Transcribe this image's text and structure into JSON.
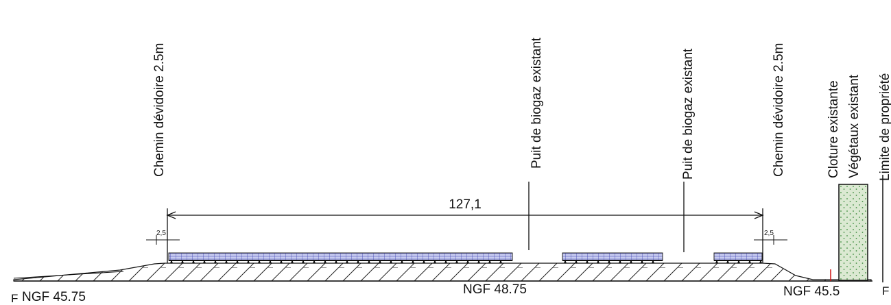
{
  "labels": {
    "chemin_left": "Chemin dévidoire 2.5m",
    "puit_1": "Puit de biogaz existant",
    "puit_2": "Puit de biogaz existant",
    "chemin_right": "Chemin dévidoire 2.5m",
    "cloture": "Cloture existante",
    "vegetaux": "Végétaux existant",
    "limite": "Limite de propriété"
  },
  "dimensions": {
    "span": "127,1",
    "offset_left": "2,5",
    "offset_right": "2,5"
  },
  "levels": {
    "left": "NGF 45.75",
    "center": "NGF 48.75",
    "right": "NGF 45.5"
  },
  "edge_marks": {
    "left": "F",
    "right": "F"
  },
  "colors": {
    "line": "#111111",
    "panel_fill": "#c8ccf0",
    "panel_grid": "#3a3fb0",
    "vegetation_fill": "#dbe9d2",
    "vegetation_dot": "#3c8a3c",
    "fence_mark": "#d01010"
  }
}
